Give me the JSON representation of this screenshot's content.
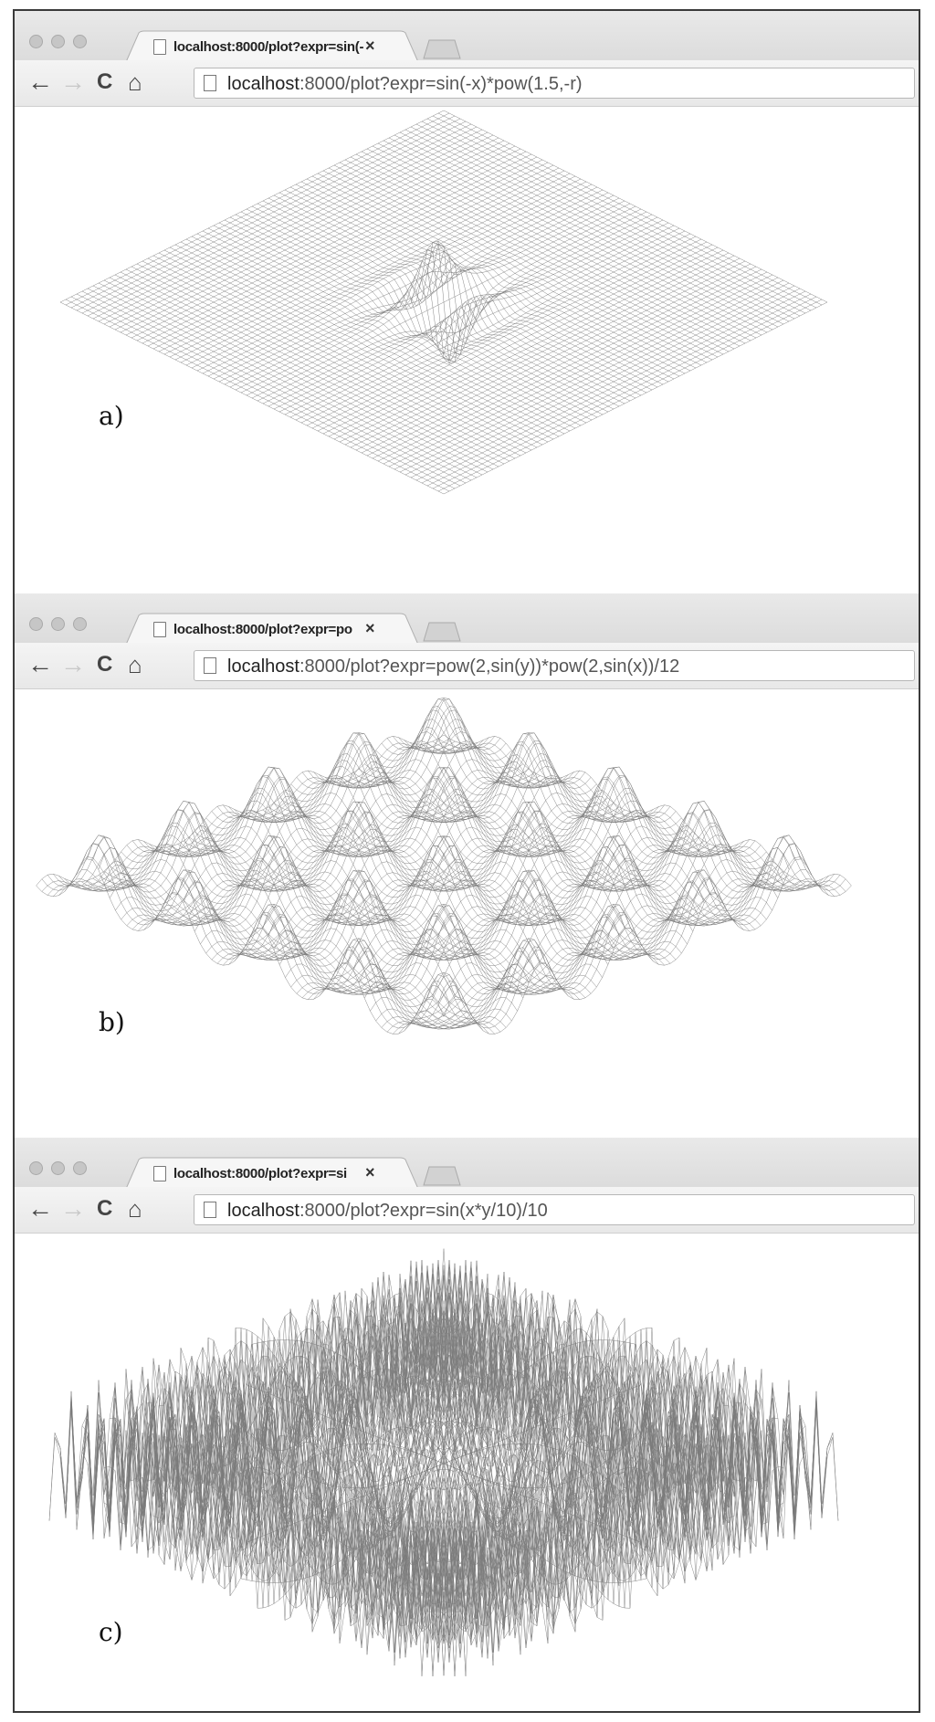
{
  "windows": [
    {
      "id": "a",
      "caption": "a)",
      "tab_title": "localhost:8000/plot?expr=sin(-",
      "url_host": "localhost",
      "url_rest": ":8000/plot?expr=sin(-x)*pow(1.5,-r)"
    },
    {
      "id": "b",
      "caption": "b)",
      "tab_title": "localhost:8000/plot?expr=po",
      "url_host": "localhost",
      "url_rest": ":8000/plot?expr=pow(2,sin(y))*pow(2,sin(x))/12"
    },
    {
      "id": "c",
      "caption": "c)",
      "tab_title": "localhost:8000/plot?expr=si",
      "url_host": "localhost",
      "url_rest": ":8000/plot?expr=sin(x*y/10)/10"
    }
  ],
  "icons": {
    "back": "←",
    "forward": "→",
    "reload": "C",
    "home": "⌂",
    "close": "×"
  },
  "colors": {
    "mesh": "#7a7a7a",
    "background": "#ffffff"
  }
}
